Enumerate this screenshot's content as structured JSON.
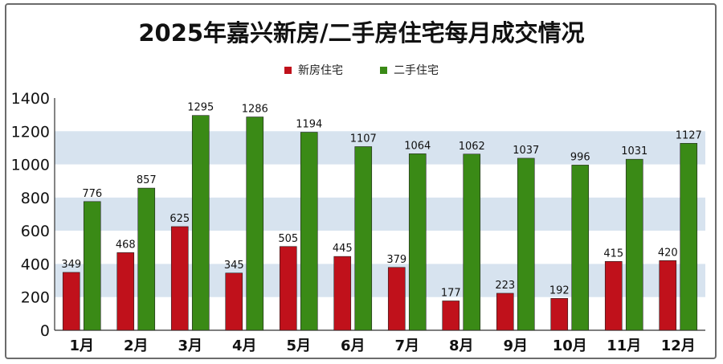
{
  "chart_data": {
    "type": "bar",
    "title": "2025年嘉兴新房/二手房住宅每月成交情况",
    "categories": [
      "1月",
      "2月",
      "3月",
      "4月",
      "5月",
      "6月",
      "7月",
      "8月",
      "9月",
      "10月",
      "11月",
      "12月"
    ],
    "series": [
      {
        "name": "新房住宅",
        "color": "#c0111b",
        "values": [
          349,
          468,
          625,
          345,
          505,
          445,
          379,
          177,
          223,
          192,
          415,
          420
        ]
      },
      {
        "name": "二手住宅",
        "color": "#3a8a16",
        "values": [
          776,
          857,
          1295,
          1286,
          1194,
          1107,
          1064,
          1062,
          1037,
          996,
          1031,
          1127
        ]
      }
    ],
    "ylim": [
      0,
      1400
    ],
    "yticks": [
      0,
      200,
      400,
      600,
      800,
      1000,
      1200,
      1400
    ],
    "grid": "alternating horizontal bands",
    "legend": "top-center",
    "band_color": "#d7e3ef"
  }
}
